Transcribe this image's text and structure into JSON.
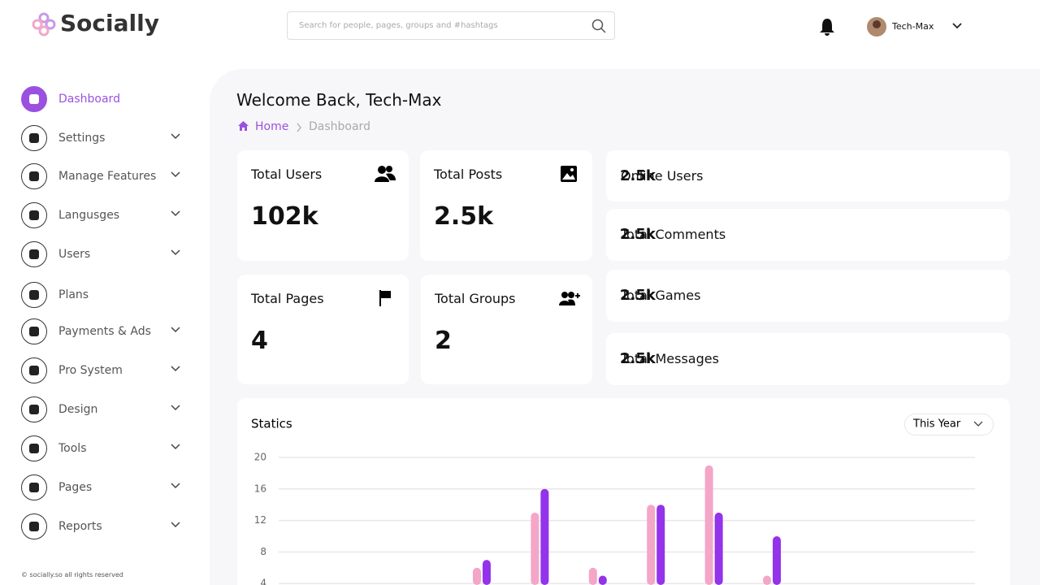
{
  "header": {
    "logo": "Socially",
    "search_placeholder": "Search for people, pages, groups and #hashtags",
    "user_name": "Tech-Max"
  },
  "sidebar": {
    "items": [
      "Dashboard",
      "Settings",
      "Manage Features",
      "Langusges",
      "Users",
      "Plans",
      "Payments & Ads",
      "Pro System",
      "Design",
      "Tools",
      "Pages",
      "Reports"
    ],
    "footer": "© socially.so all rights reserved"
  },
  "main": {
    "title": "Welcome Back, Tech-Max",
    "breadcrumb": [
      "Home",
      "Dashboard"
    ],
    "stat_cards": [
      {
        "label": "Total Users",
        "value": "102k"
      },
      {
        "label": "Total Posts",
        "value": "2.5k"
      },
      {
        "label": "Total Pages",
        "value": "4"
      },
      {
        "label": "Total Groups",
        "value": "2"
      }
    ],
    "summary_rows": [
      {
        "label": "Online Users",
        "value": "2.5k"
      },
      {
        "label": "Total Comments",
        "value": "2.5k"
      },
      {
        "label": "Total Games",
        "value": "2.5k"
      },
      {
        "label": "Total Messages",
        "value": "2.5k"
      }
    ]
  },
  "chart_data": {
    "type": "bar",
    "title": "Statics",
    "period_selector": "This Year",
    "categories": [
      null,
      null,
      null,
      null,
      null,
      null,
      null,
      null,
      null,
      null,
      null,
      null
    ],
    "series": [
      {
        "color": "#f4a6c8",
        "values": [
          0,
          0,
          0,
          6,
          13,
          6,
          14,
          19,
          5,
          0,
          0,
          0
        ]
      },
      {
        "color": "#9333ea",
        "values": [
          0,
          0,
          0,
          7,
          16,
          5,
          14,
          13,
          10,
          0,
          0,
          0
        ]
      }
    ],
    "ylim": [
      0,
      20
    ],
    "yticks": [
      4,
      8,
      12,
      16,
      20
    ],
    "grid": true
  }
}
